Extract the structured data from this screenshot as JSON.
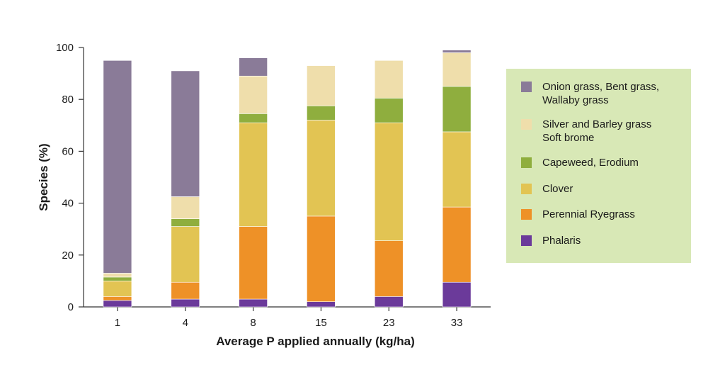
{
  "chart_data": {
    "type": "bar",
    "stacked": true,
    "title": "",
    "xlabel": "Average P applied annually (kg/ha)",
    "ylabel": "Species (%)",
    "ylim": [
      0,
      100
    ],
    "yticks": [
      "0",
      "20",
      "40",
      "60",
      "80",
      "100"
    ],
    "categories": [
      "1",
      "4",
      "8",
      "15",
      "23",
      "33"
    ],
    "series": [
      {
        "name": "Phalaris",
        "color": "#6b3a9a",
        "values": [
          2.5,
          3,
          3,
          2,
          4,
          9.5
        ]
      },
      {
        "name": "Perennial Ryegrass",
        "color": "#ee9127",
        "values": [
          1.5,
          6.5,
          28,
          33,
          21.5,
          29
        ]
      },
      {
        "name": "Clover",
        "color": "#e2c453",
        "values": [
          6,
          21.5,
          40,
          37,
          45.5,
          29
        ]
      },
      {
        "name": "Capeweed, Erodium",
        "color": "#8fae3e",
        "values": [
          1.5,
          3,
          3.5,
          5.5,
          9.5,
          17.5
        ]
      },
      {
        "name": "Silver and Barley grass Soft brome",
        "color": "#efdeab",
        "values": [
          1.5,
          8.5,
          14.5,
          15.5,
          14.5,
          13
        ]
      },
      {
        "name": "Onion grass, Bent grass, Wallaby grass",
        "color": "#8a7b98",
        "values": [
          82,
          48.5,
          7,
          0,
          0,
          1
        ]
      }
    ],
    "legend": {
      "position": "right",
      "items": [
        {
          "key": "onion",
          "color": "#8a7b98",
          "lines": [
            "Onion grass, Bent grass,",
            "Wallaby grass"
          ]
        },
        {
          "key": "silver",
          "color": "#efdeab",
          "lines": [
            "Silver and Barley grass",
            "Soft brome"
          ]
        },
        {
          "key": "capeweed",
          "color": "#8fae3e",
          "lines": [
            "Capeweed, Erodium"
          ]
        },
        {
          "key": "clover",
          "color": "#e2c453",
          "lines": [
            "Clover"
          ]
        },
        {
          "key": "ryegrass",
          "color": "#ee9127",
          "lines": [
            "Perennial Ryegrass"
          ]
        },
        {
          "key": "phalaris",
          "color": "#6b3a9a",
          "lines": [
            "Phalaris"
          ]
        }
      ],
      "background": "#d8e8b6"
    }
  }
}
